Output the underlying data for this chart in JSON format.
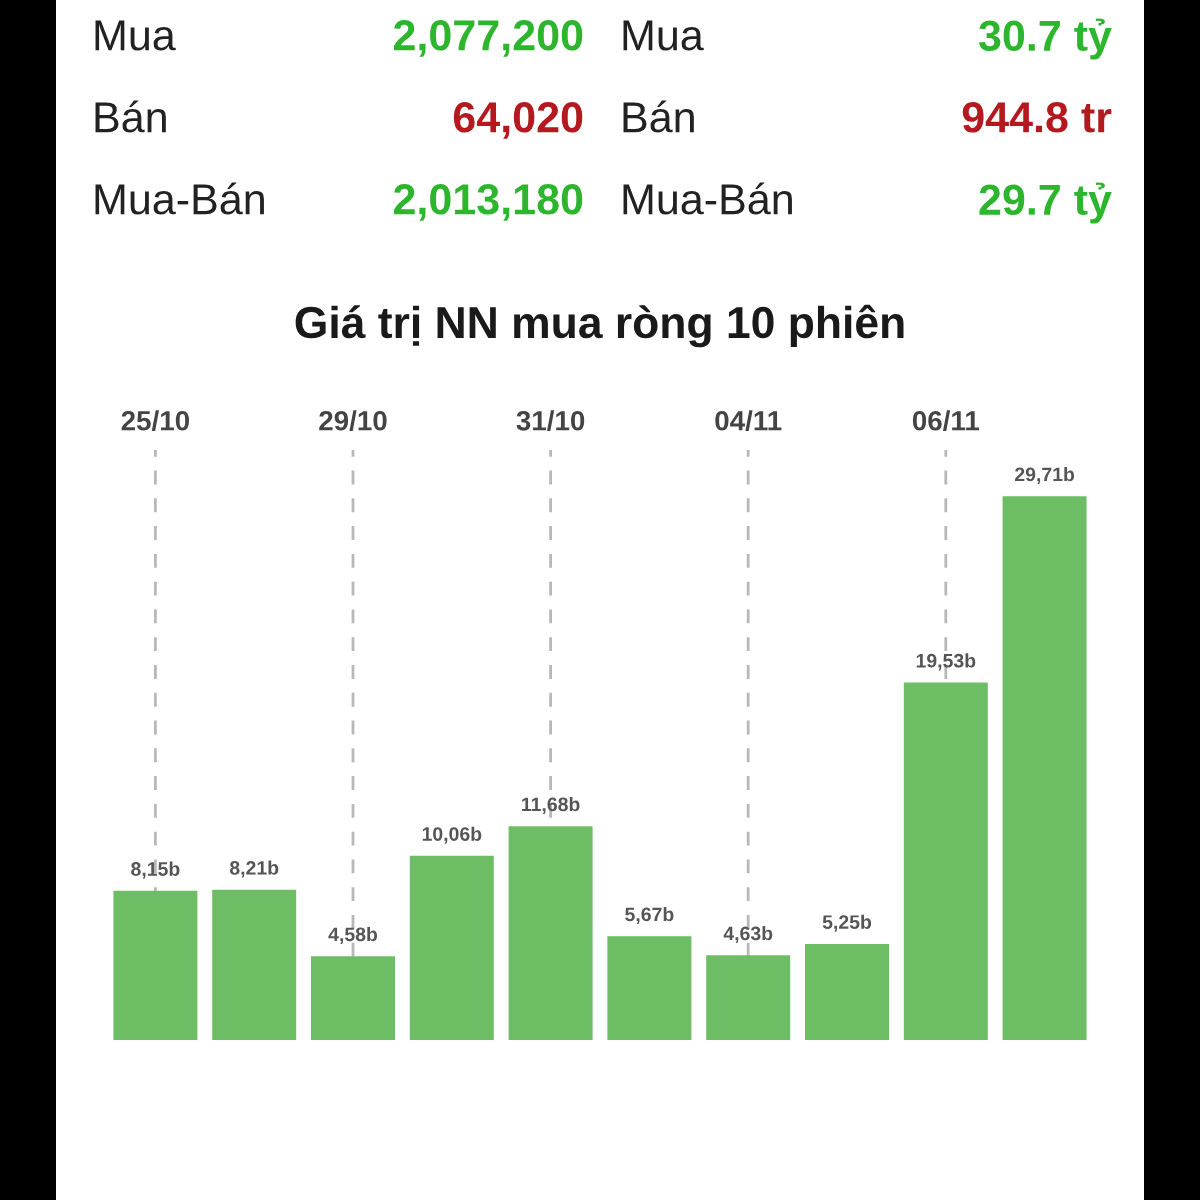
{
  "chart_data": [
    {
      "type": "other",
      "annotations": [
        "Mua",
        "2,077,200",
        "Mua",
        "30.7 tỷ",
        "Bán",
        "64,020",
        "Bán",
        "944.8 tr",
        "Mua-Bán",
        "2,013,180",
        "Mua-Bán",
        "29.7 tỷ"
      ],
      "colors": [
        "#222222",
        "#2db52d",
        "#222222",
        "#2db52d",
        "#222222",
        "#b3191e",
        "#222222",
        "#b3191e",
        "#222222",
        "#2db52d",
        "#222222",
        "#2db52d"
      ]
    },
    {
      "type": "bar",
      "title": "Giá trị NN mua ròng 10 phiên",
      "categories": [
        "25/10",
        null,
        "29/10",
        null,
        "31/10",
        null,
        "04/11",
        null,
        "06/11",
        null
      ],
      "values": [
        8.15,
        8.21,
        4.58,
        10.06,
        11.68,
        5.67,
        4.63,
        5.25,
        19.53,
        29.71
      ],
      "value_labels": [
        "8,15b",
        "8,21b",
        "4,58b",
        "10,06b",
        "11,68b",
        "5,67b",
        "4,63b",
        "5,25b",
        "19,53b",
        "29,71b"
      ],
      "color": "#6cbd64",
      "grid": "x",
      "tick_labels": "x"
    }
  ]
}
